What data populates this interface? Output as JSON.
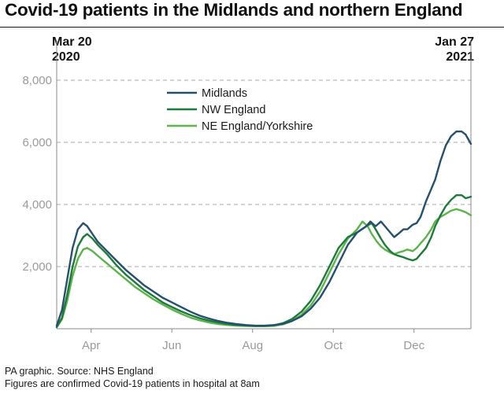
{
  "title": "Covid-19 patients in the Midlands and northern England",
  "date_start": [
    "Mar 20",
    "2020"
  ],
  "date_end": [
    "Jan 27",
    "2021"
  ],
  "footer": {
    "line1": "PA graphic. Source: NHS England",
    "line2": "Figures are confirmed Covid-19 patients in hospital at 8am"
  },
  "chart_data": {
    "type": "line",
    "title": "Covid-19 patients in the Midlands and northern England",
    "xlabel": "",
    "ylabel": "",
    "x_range": [
      "2020-03-20",
      "2021-01-27"
    ],
    "ylim": [
      0,
      8000
    ],
    "y_ticks": [
      2000,
      4000,
      6000,
      8000
    ],
    "y_tick_labels": [
      "2,000",
      "4,000",
      "6,000",
      "8,000"
    ],
    "x_ticks": [
      {
        "date": "2020-04-15",
        "label": "Apr"
      },
      {
        "date": "2020-06-15",
        "label": "Jun"
      },
      {
        "date": "2020-08-15",
        "label": "Aug"
      },
      {
        "date": "2020-10-15",
        "label": "Oct"
      },
      {
        "date": "2020-12-15",
        "label": "Dec"
      }
    ],
    "grid": "horizontal dashed",
    "legend_position": "top-center",
    "series": [
      {
        "name": "Midlands",
        "color": "#24506e",
        "points": [
          [
            "2020-03-20",
            100
          ],
          [
            "2020-03-24",
            600
          ],
          [
            "2020-03-28",
            1600
          ],
          [
            "2020-04-01",
            2600
          ],
          [
            "2020-04-05",
            3200
          ],
          [
            "2020-04-09",
            3400
          ],
          [
            "2020-04-12",
            3300
          ],
          [
            "2020-04-16",
            3050
          ],
          [
            "2020-04-20",
            2800
          ],
          [
            "2020-04-27",
            2500
          ],
          [
            "2020-05-04",
            2200
          ],
          [
            "2020-05-11",
            1900
          ],
          [
            "2020-05-18",
            1650
          ],
          [
            "2020-05-25",
            1400
          ],
          [
            "2020-06-01",
            1200
          ],
          [
            "2020-06-08",
            1000
          ],
          [
            "2020-06-15",
            850
          ],
          [
            "2020-06-22",
            700
          ],
          [
            "2020-06-29",
            550
          ],
          [
            "2020-07-06",
            420
          ],
          [
            "2020-07-13",
            330
          ],
          [
            "2020-07-20",
            250
          ],
          [
            "2020-07-27",
            190
          ],
          [
            "2020-08-03",
            150
          ],
          [
            "2020-08-10",
            120
          ],
          [
            "2020-08-17",
            100
          ],
          [
            "2020-08-24",
            100
          ],
          [
            "2020-08-31",
            120
          ],
          [
            "2020-09-07",
            160
          ],
          [
            "2020-09-14",
            250
          ],
          [
            "2020-09-21",
            400
          ],
          [
            "2020-09-28",
            650
          ],
          [
            "2020-10-05",
            1000
          ],
          [
            "2020-10-12",
            1500
          ],
          [
            "2020-10-19",
            2100
          ],
          [
            "2020-10-26",
            2700
          ],
          [
            "2020-11-02",
            3100
          ],
          [
            "2020-11-09",
            3300
          ],
          [
            "2020-11-12",
            3450
          ],
          [
            "2020-11-16",
            3300
          ],
          [
            "2020-11-20",
            3450
          ],
          [
            "2020-11-23",
            3300
          ],
          [
            "2020-11-27",
            3100
          ],
          [
            "2020-11-30",
            2950
          ],
          [
            "2020-12-03",
            3050
          ],
          [
            "2020-12-07",
            3200
          ],
          [
            "2020-12-10",
            3200
          ],
          [
            "2020-12-14",
            3350
          ],
          [
            "2020-12-17",
            3400
          ],
          [
            "2020-12-20",
            3600
          ],
          [
            "2020-12-24",
            4100
          ],
          [
            "2020-12-28",
            4500
          ],
          [
            "2020-12-31",
            4800
          ],
          [
            "2021-01-04",
            5400
          ],
          [
            "2021-01-08",
            5900
          ],
          [
            "2021-01-12",
            6200
          ],
          [
            "2021-01-16",
            6350
          ],
          [
            "2021-01-20",
            6350
          ],
          [
            "2021-01-23",
            6250
          ],
          [
            "2021-01-27",
            5950
          ]
        ]
      },
      {
        "name": "NW England",
        "color": "#1d7a3a",
        "points": [
          [
            "2020-03-20",
            50
          ],
          [
            "2020-03-24",
            350
          ],
          [
            "2020-03-28",
            1100
          ],
          [
            "2020-04-01",
            2000
          ],
          [
            "2020-04-05",
            2650
          ],
          [
            "2020-04-09",
            2950
          ],
          [
            "2020-04-12",
            3050
          ],
          [
            "2020-04-16",
            2900
          ],
          [
            "2020-04-20",
            2700
          ],
          [
            "2020-04-27",
            2400
          ],
          [
            "2020-05-04",
            2050
          ],
          [
            "2020-05-11",
            1750
          ],
          [
            "2020-05-18",
            1500
          ],
          [
            "2020-05-25",
            1250
          ],
          [
            "2020-06-01",
            1050
          ],
          [
            "2020-06-08",
            850
          ],
          [
            "2020-06-15",
            700
          ],
          [
            "2020-06-22",
            560
          ],
          [
            "2020-06-29",
            440
          ],
          [
            "2020-07-06",
            340
          ],
          [
            "2020-07-13",
            260
          ],
          [
            "2020-07-20",
            200
          ],
          [
            "2020-07-27",
            150
          ],
          [
            "2020-08-03",
            120
          ],
          [
            "2020-08-10",
            100
          ],
          [
            "2020-08-17",
            90
          ],
          [
            "2020-08-24",
            90
          ],
          [
            "2020-08-31",
            110
          ],
          [
            "2020-09-07",
            180
          ],
          [
            "2020-09-14",
            320
          ],
          [
            "2020-09-21",
            550
          ],
          [
            "2020-09-28",
            900
          ],
          [
            "2020-10-05",
            1400
          ],
          [
            "2020-10-12",
            2000
          ],
          [
            "2020-10-19",
            2600
          ],
          [
            "2020-10-26",
            2950
          ],
          [
            "2020-11-02",
            3100
          ],
          [
            "2020-11-09",
            3300
          ],
          [
            "2020-11-13",
            3400
          ],
          [
            "2020-11-16",
            3200
          ],
          [
            "2020-11-20",
            2900
          ],
          [
            "2020-11-23",
            2700
          ],
          [
            "2020-11-27",
            2500
          ],
          [
            "2020-11-30",
            2400
          ],
          [
            "2020-12-03",
            2350
          ],
          [
            "2020-12-07",
            2300
          ],
          [
            "2020-12-10",
            2250
          ],
          [
            "2020-12-14",
            2200
          ],
          [
            "2020-12-17",
            2250
          ],
          [
            "2020-12-20",
            2400
          ],
          [
            "2020-12-24",
            2600
          ],
          [
            "2020-12-28",
            2950
          ],
          [
            "2020-12-31",
            3300
          ],
          [
            "2021-01-04",
            3650
          ],
          [
            "2021-01-08",
            3950
          ],
          [
            "2021-01-12",
            4150
          ],
          [
            "2021-01-16",
            4300
          ],
          [
            "2021-01-20",
            4300
          ],
          [
            "2021-01-23",
            4200
          ],
          [
            "2021-01-27",
            4250
          ]
        ]
      },
      {
        "name": "NE England/Yorkshire",
        "color": "#5bb44a",
        "points": [
          [
            "2020-03-20",
            50
          ],
          [
            "2020-03-24",
            300
          ],
          [
            "2020-03-28",
            900
          ],
          [
            "2020-04-01",
            1700
          ],
          [
            "2020-04-05",
            2250
          ],
          [
            "2020-04-09",
            2550
          ],
          [
            "2020-04-12",
            2600
          ],
          [
            "2020-04-16",
            2500
          ],
          [
            "2020-04-20",
            2350
          ],
          [
            "2020-04-27",
            2100
          ],
          [
            "2020-05-04",
            1850
          ],
          [
            "2020-05-11",
            1600
          ],
          [
            "2020-05-18",
            1350
          ],
          [
            "2020-05-25",
            1150
          ],
          [
            "2020-06-01",
            950
          ],
          [
            "2020-06-08",
            780
          ],
          [
            "2020-06-15",
            620
          ],
          [
            "2020-06-22",
            480
          ],
          [
            "2020-06-29",
            360
          ],
          [
            "2020-07-06",
            270
          ],
          [
            "2020-07-13",
            200
          ],
          [
            "2020-07-20",
            150
          ],
          [
            "2020-07-27",
            120
          ],
          [
            "2020-08-03",
            100
          ],
          [
            "2020-08-10",
            90
          ],
          [
            "2020-08-17",
            80
          ],
          [
            "2020-08-24",
            80
          ],
          [
            "2020-08-31",
            90
          ],
          [
            "2020-09-07",
            140
          ],
          [
            "2020-09-14",
            250
          ],
          [
            "2020-09-21",
            450
          ],
          [
            "2020-09-28",
            750
          ],
          [
            "2020-10-05",
            1200
          ],
          [
            "2020-10-12",
            1800
          ],
          [
            "2020-10-19",
            2400
          ],
          [
            "2020-10-26",
            2900
          ],
          [
            "2020-11-02",
            3200
          ],
          [
            "2020-11-06",
            3450
          ],
          [
            "2020-11-10",
            3300
          ],
          [
            "2020-11-13",
            3050
          ],
          [
            "2020-11-17",
            2800
          ],
          [
            "2020-11-20",
            2650
          ],
          [
            "2020-11-23",
            2550
          ],
          [
            "2020-11-27",
            2450
          ],
          [
            "2020-11-30",
            2400
          ],
          [
            "2020-12-03",
            2450
          ],
          [
            "2020-12-07",
            2500
          ],
          [
            "2020-12-10",
            2550
          ],
          [
            "2020-12-14",
            2500
          ],
          [
            "2020-12-17",
            2600
          ],
          [
            "2020-12-20",
            2750
          ],
          [
            "2020-12-24",
            2950
          ],
          [
            "2020-12-28",
            3200
          ],
          [
            "2020-12-31",
            3450
          ],
          [
            "2021-01-04",
            3600
          ],
          [
            "2021-01-08",
            3700
          ],
          [
            "2021-01-12",
            3800
          ],
          [
            "2021-01-16",
            3850
          ],
          [
            "2021-01-20",
            3800
          ],
          [
            "2021-01-23",
            3750
          ],
          [
            "2021-01-27",
            3650
          ]
        ]
      }
    ]
  }
}
